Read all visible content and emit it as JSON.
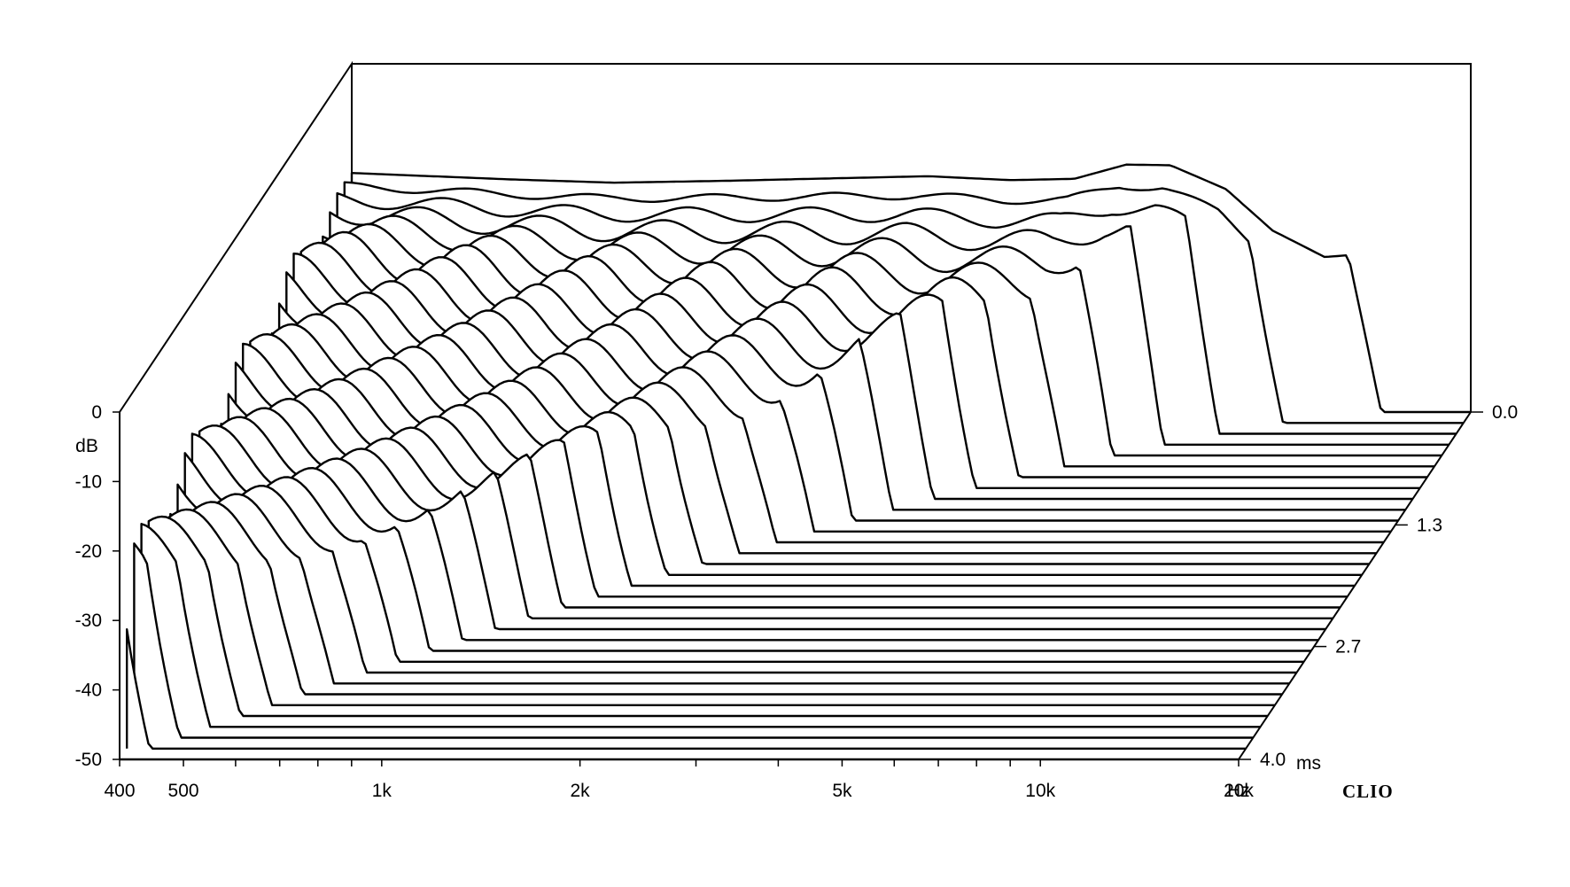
{
  "chart_data": {
    "type": "waterfall",
    "software_label": "CLIO",
    "x_axis": {
      "scale": "log",
      "range_hz": [
        400,
        20000
      ],
      "tick_labels": [
        {
          "hz": 400,
          "label": "400"
        },
        {
          "hz": 500,
          "label": "500"
        },
        {
          "hz": 1000,
          "label": "1k"
        },
        {
          "hz": 2000,
          "label": "2k"
        },
        {
          "hz": 5000,
          "label": "5k"
        },
        {
          "hz": 10000,
          "label": "10k"
        },
        {
          "hz": 20000,
          "label": "20k"
        }
      ],
      "unit_label": "Hz"
    },
    "y_axis": {
      "range_db": [
        -50,
        0
      ],
      "unit_label": "dB",
      "tick_labels": [
        {
          "db": 0,
          "label": "0"
        },
        {
          "db": -10,
          "label": "-10"
        },
        {
          "db": -20,
          "label": "-20"
        },
        {
          "db": -30,
          "label": "-30"
        },
        {
          "db": -40,
          "label": "-40"
        },
        {
          "db": -50,
          "label": "-50"
        }
      ]
    },
    "z_axis": {
      "range_ms": [
        0,
        4.0
      ],
      "unit_label": "ms",
      "tick_labels": [
        {
          "ms": 0.0,
          "label": "0.0"
        },
        {
          "ms": 1.3,
          "label": "1.3"
        },
        {
          "ms": 2.7,
          "label": "2.7"
        },
        {
          "ms": 4.0,
          "label": "4.0"
        }
      ]
    },
    "slices": 33,
    "initial_response_db": [
      {
        "hz": 400,
        "db": 37
      },
      {
        "hz": 700,
        "db": 36
      },
      {
        "hz": 1000,
        "db": 35.5
      },
      {
        "hz": 1500,
        "db": 35.8
      },
      {
        "hz": 2000,
        "db": 36.1
      },
      {
        "hz": 3000,
        "db": 36.5
      },
      {
        "hz": 4000,
        "db": 35.9
      },
      {
        "hz": 5000,
        "db": 36.1
      },
      {
        "hz": 6000,
        "db": 38.3
      },
      {
        "hz": 7000,
        "db": 38.2
      },
      {
        "hz": 8500,
        "db": 34.5
      },
      {
        "hz": 10000,
        "db": 28.1
      },
      {
        "hz": 12000,
        "db": 24
      },
      {
        "hz": 14000,
        "db": 24.5
      },
      {
        "hz": 20000,
        "db": 20
      }
    ]
  }
}
